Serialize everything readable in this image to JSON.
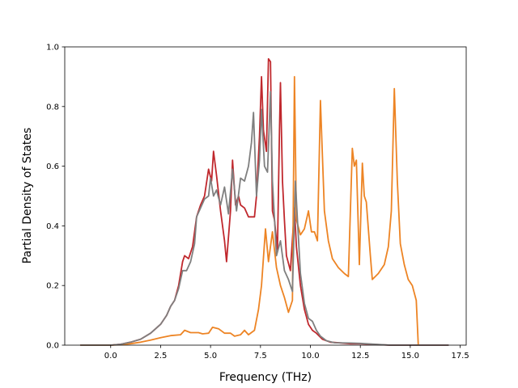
{
  "chart_data": {
    "type": "line",
    "title": "",
    "xlabel": "Frequency (THz)",
    "ylabel": "Partial Density of States",
    "xlim": [
      -2.3,
      17.8
    ],
    "ylim": [
      0.0,
      1.0
    ],
    "xticks": [
      0.0,
      2.5,
      5.0,
      7.5,
      10.0,
      12.5,
      15.0,
      17.5
    ],
    "xtick_labels": [
      "0.0",
      "2.5",
      "5.0",
      "7.5",
      "10.0",
      "12.5",
      "15.0",
      "17.5"
    ],
    "yticks": [
      0.0,
      0.2,
      0.4,
      0.6,
      0.8,
      1.0
    ],
    "ytick_labels": [
      "0.0",
      "0.2",
      "0.4",
      "0.6",
      "0.8",
      "1.0"
    ],
    "grid": false,
    "series": [
      {
        "color": "#c0282d",
        "points": [
          [
            -1.5,
            0.0
          ],
          [
            0.0,
            0.0
          ],
          [
            0.5,
            0.003
          ],
          [
            1.0,
            0.01
          ],
          [
            1.5,
            0.02
          ],
          [
            2.0,
            0.04
          ],
          [
            2.5,
            0.07
          ],
          [
            2.8,
            0.1
          ],
          [
            3.0,
            0.13
          ],
          [
            3.2,
            0.15
          ],
          [
            3.4,
            0.2
          ],
          [
            3.6,
            0.28
          ],
          [
            3.7,
            0.3
          ],
          [
            3.9,
            0.29
          ],
          [
            4.1,
            0.33
          ],
          [
            4.2,
            0.38
          ],
          [
            4.3,
            0.43
          ],
          [
            4.5,
            0.47
          ],
          [
            4.7,
            0.5
          ],
          [
            4.9,
            0.59
          ],
          [
            5.05,
            0.55
          ],
          [
            5.15,
            0.65
          ],
          [
            5.3,
            0.57
          ],
          [
            5.5,
            0.45
          ],
          [
            5.7,
            0.35
          ],
          [
            5.8,
            0.28
          ],
          [
            6.0,
            0.45
          ],
          [
            6.1,
            0.62
          ],
          [
            6.25,
            0.47
          ],
          [
            6.4,
            0.5
          ],
          [
            6.5,
            0.47
          ],
          [
            6.7,
            0.46
          ],
          [
            6.9,
            0.43
          ],
          [
            7.2,
            0.43
          ],
          [
            7.3,
            0.5
          ],
          [
            7.45,
            0.7
          ],
          [
            7.55,
            0.9
          ],
          [
            7.65,
            0.72
          ],
          [
            7.8,
            0.65
          ],
          [
            7.9,
            0.96
          ],
          [
            8.0,
            0.95
          ],
          [
            8.1,
            0.45
          ],
          [
            8.2,
            0.42
          ],
          [
            8.35,
            0.32
          ],
          [
            8.45,
            0.72
          ],
          [
            8.5,
            0.88
          ],
          [
            8.6,
            0.55
          ],
          [
            8.7,
            0.42
          ],
          [
            8.8,
            0.3
          ],
          [
            9.0,
            0.25
          ],
          [
            9.2,
            0.46
          ],
          [
            9.3,
            0.33
          ],
          [
            9.5,
            0.2
          ],
          [
            9.7,
            0.12
          ],
          [
            9.9,
            0.07
          ],
          [
            10.1,
            0.05
          ],
          [
            10.3,
            0.04
          ],
          [
            10.6,
            0.02
          ],
          [
            11.0,
            0.01
          ],
          [
            12.0,
            0.005
          ],
          [
            12.5,
            0.005
          ],
          [
            13.0,
            0.003
          ],
          [
            14.0,
            0.0
          ],
          [
            16.9,
            0.0
          ]
        ]
      },
      {
        "color": "#ed8424",
        "points": [
          [
            -1.5,
            0.0
          ],
          [
            0.0,
            0.0
          ],
          [
            0.5,
            0.002
          ],
          [
            1.0,
            0.005
          ],
          [
            1.5,
            0.01
          ],
          [
            2.0,
            0.017
          ],
          [
            2.5,
            0.025
          ],
          [
            3.0,
            0.032
          ],
          [
            3.5,
            0.035
          ],
          [
            3.7,
            0.05
          ],
          [
            4.0,
            0.042
          ],
          [
            4.4,
            0.042
          ],
          [
            4.6,
            0.038
          ],
          [
            4.9,
            0.04
          ],
          [
            5.1,
            0.06
          ],
          [
            5.4,
            0.055
          ],
          [
            5.7,
            0.04
          ],
          [
            6.0,
            0.04
          ],
          [
            6.2,
            0.03
          ],
          [
            6.5,
            0.035
          ],
          [
            6.7,
            0.05
          ],
          [
            6.9,
            0.035
          ],
          [
            7.2,
            0.05
          ],
          [
            7.4,
            0.12
          ],
          [
            7.55,
            0.2
          ],
          [
            7.75,
            0.39
          ],
          [
            7.9,
            0.28
          ],
          [
            8.1,
            0.38
          ],
          [
            8.3,
            0.26
          ],
          [
            8.5,
            0.2
          ],
          [
            8.7,
            0.16
          ],
          [
            8.9,
            0.11
          ],
          [
            9.1,
            0.15
          ],
          [
            9.2,
            0.9
          ],
          [
            9.3,
            0.42
          ],
          [
            9.5,
            0.37
          ],
          [
            9.7,
            0.39
          ],
          [
            9.9,
            0.45
          ],
          [
            10.05,
            0.38
          ],
          [
            10.2,
            0.38
          ],
          [
            10.35,
            0.35
          ],
          [
            10.5,
            0.82
          ],
          [
            10.7,
            0.45
          ],
          [
            10.9,
            0.35
          ],
          [
            11.1,
            0.29
          ],
          [
            11.4,
            0.26
          ],
          [
            11.7,
            0.24
          ],
          [
            11.9,
            0.23
          ],
          [
            12.1,
            0.66
          ],
          [
            12.2,
            0.6
          ],
          [
            12.3,
            0.62
          ],
          [
            12.45,
            0.27
          ],
          [
            12.6,
            0.61
          ],
          [
            12.7,
            0.5
          ],
          [
            12.8,
            0.48
          ],
          [
            13.0,
            0.3
          ],
          [
            13.1,
            0.22
          ],
          [
            13.4,
            0.24
          ],
          [
            13.7,
            0.27
          ],
          [
            13.9,
            0.33
          ],
          [
            14.05,
            0.45
          ],
          [
            14.2,
            0.86
          ],
          [
            14.35,
            0.55
          ],
          [
            14.5,
            0.34
          ],
          [
            14.7,
            0.27
          ],
          [
            14.9,
            0.22
          ],
          [
            15.1,
            0.2
          ],
          [
            15.3,
            0.15
          ],
          [
            15.4,
            0.0
          ]
        ]
      },
      {
        "color": "#7f7f7f",
        "points": [
          [
            -1.5,
            0.0
          ],
          [
            0.0,
            0.0
          ],
          [
            0.5,
            0.003
          ],
          [
            1.0,
            0.01
          ],
          [
            1.5,
            0.02
          ],
          [
            2.0,
            0.04
          ],
          [
            2.5,
            0.07
          ],
          [
            2.8,
            0.1
          ],
          [
            3.0,
            0.13
          ],
          [
            3.2,
            0.15
          ],
          [
            3.4,
            0.19
          ],
          [
            3.6,
            0.25
          ],
          [
            3.8,
            0.25
          ],
          [
            4.0,
            0.28
          ],
          [
            4.2,
            0.34
          ],
          [
            4.3,
            0.43
          ],
          [
            4.5,
            0.46
          ],
          [
            4.7,
            0.49
          ],
          [
            4.9,
            0.5
          ],
          [
            5.0,
            0.56
          ],
          [
            5.15,
            0.5
          ],
          [
            5.3,
            0.52
          ],
          [
            5.5,
            0.47
          ],
          [
            5.7,
            0.53
          ],
          [
            5.9,
            0.44
          ],
          [
            6.1,
            0.59
          ],
          [
            6.3,
            0.45
          ],
          [
            6.5,
            0.56
          ],
          [
            6.7,
            0.55
          ],
          [
            6.9,
            0.6
          ],
          [
            7.05,
            0.68
          ],
          [
            7.15,
            0.78
          ],
          [
            7.3,
            0.5
          ],
          [
            7.45,
            0.62
          ],
          [
            7.55,
            0.79
          ],
          [
            7.7,
            0.6
          ],
          [
            7.85,
            0.58
          ],
          [
            8.0,
            0.85
          ],
          [
            8.1,
            0.55
          ],
          [
            8.3,
            0.3
          ],
          [
            8.5,
            0.35
          ],
          [
            8.7,
            0.25
          ],
          [
            8.9,
            0.22
          ],
          [
            9.1,
            0.18
          ],
          [
            9.25,
            0.55
          ],
          [
            9.35,
            0.42
          ],
          [
            9.5,
            0.24
          ],
          [
            9.7,
            0.14
          ],
          [
            9.9,
            0.09
          ],
          [
            10.1,
            0.08
          ],
          [
            10.3,
            0.05
          ],
          [
            10.5,
            0.03
          ],
          [
            10.8,
            0.015
          ],
          [
            11.2,
            0.008
          ],
          [
            12.0,
            0.007
          ],
          [
            12.5,
            0.006
          ],
          [
            13.0,
            0.004
          ],
          [
            14.0,
            0.0
          ],
          [
            16.9,
            0.0
          ]
        ]
      }
    ]
  }
}
